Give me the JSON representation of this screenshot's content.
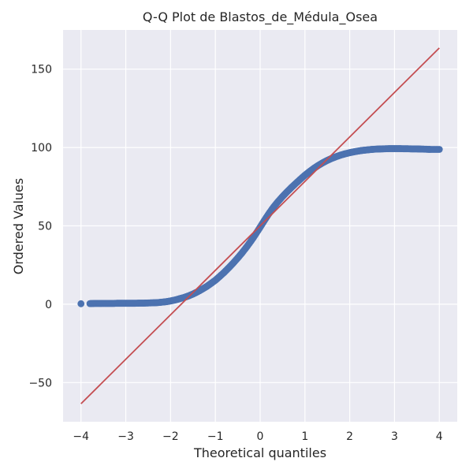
{
  "chart_data": {
    "type": "scatter",
    "title": "Q-Q Plot de Blastos_de_Médula_Osea",
    "xlabel": "Theoretical quantiles",
    "ylabel": "Ordered Values",
    "xlim": [
      -4.4,
      4.4
    ],
    "ylim": [
      -75,
      175
    ],
    "xticks": [
      -4,
      -3,
      -2,
      -1,
      0,
      1,
      2,
      3,
      4
    ],
    "xtick_labels": [
      "−4",
      "−3",
      "−2",
      "−1",
      "0",
      "1",
      "2",
      "3",
      "4"
    ],
    "yticks": [
      -50,
      0,
      50,
      100,
      150
    ],
    "ytick_labels": [
      "−50",
      "0",
      "50",
      "100",
      "150"
    ],
    "grid": true,
    "colors": {
      "background": "#eaeaf2",
      "grid": "#ffffff",
      "points": "#4c72b0",
      "fit_line": "#c44e52"
    },
    "series": [
      {
        "kind": "ordered-values",
        "points": [
          [
            -4.0,
            0.3
          ],
          [
            -3.8,
            0.4
          ],
          [
            -3.7,
            0.5
          ],
          [
            -3.6,
            0.5
          ],
          [
            -3.5,
            0.5
          ],
          [
            -3.4,
            0.5
          ],
          [
            -3.3,
            0.5
          ],
          [
            -3.2,
            0.6
          ],
          [
            -3.1,
            0.6
          ],
          [
            -3.0,
            0.6
          ],
          [
            -2.9,
            0.6
          ],
          [
            -2.8,
            0.6
          ],
          [
            -2.7,
            0.7
          ],
          [
            -2.6,
            0.7
          ],
          [
            -2.5,
            0.8
          ],
          [
            -2.4,
            0.9
          ],
          [
            -2.3,
            1.0
          ],
          [
            -2.2,
            1.3
          ],
          [
            -2.1,
            1.6
          ],
          [
            -2.0,
            2.1
          ],
          [
            -1.9,
            2.7
          ],
          [
            -1.8,
            3.5
          ],
          [
            -1.7,
            4.3
          ],
          [
            -1.6,
            5.3
          ],
          [
            -1.5,
            6.5
          ],
          [
            -1.4,
            7.9
          ],
          [
            -1.3,
            9.5
          ],
          [
            -1.2,
            11.2
          ],
          [
            -1.1,
            13.2
          ],
          [
            -1.0,
            15.3
          ],
          [
            -0.9,
            17.8
          ],
          [
            -0.8,
            20.4
          ],
          [
            -0.7,
            23.3
          ],
          [
            -0.6,
            26.3
          ],
          [
            -0.5,
            29.5
          ],
          [
            -0.4,
            32.9
          ],
          [
            -0.3,
            36.6
          ],
          [
            -0.2,
            40.5
          ],
          [
            -0.1,
            44.7
          ],
          [
            0.0,
            49.2
          ],
          [
            0.1,
            53.7
          ],
          [
            0.2,
            58.0
          ],
          [
            0.3,
            62.0
          ],
          [
            0.4,
            65.5
          ],
          [
            0.5,
            68.7
          ],
          [
            0.6,
            71.7
          ],
          [
            0.7,
            74.5
          ],
          [
            0.8,
            77.2
          ],
          [
            0.9,
            79.8
          ],
          [
            1.0,
            82.3
          ],
          [
            1.1,
            84.6
          ],
          [
            1.2,
            86.7
          ],
          [
            1.3,
            88.6
          ],
          [
            1.4,
            90.3
          ],
          [
            1.5,
            91.8
          ],
          [
            1.6,
            93.1
          ],
          [
            1.7,
            94.2
          ],
          [
            1.8,
            95.2
          ],
          [
            1.9,
            96.0
          ],
          [
            2.0,
            96.7
          ],
          [
            2.1,
            97.3
          ],
          [
            2.2,
            97.8
          ],
          [
            2.3,
            98.2
          ],
          [
            2.4,
            98.5
          ],
          [
            2.5,
            98.8
          ],
          [
            2.6,
            99.0
          ],
          [
            2.7,
            99.1
          ],
          [
            2.8,
            99.2
          ],
          [
            2.9,
            99.3
          ],
          [
            3.0,
            99.3
          ],
          [
            3.1,
            99.3
          ],
          [
            3.2,
            99.2
          ],
          [
            3.3,
            99.2
          ],
          [
            3.4,
            99.1
          ],
          [
            3.5,
            99.1
          ],
          [
            3.6,
            99.0
          ],
          [
            3.7,
            98.9
          ],
          [
            3.8,
            98.8
          ],
          [
            4.0,
            98.8
          ]
        ]
      },
      {
        "kind": "fit-line",
        "points": [
          [
            -4.0,
            -63.5
          ],
          [
            4.0,
            163.5
          ]
        ]
      }
    ]
  }
}
